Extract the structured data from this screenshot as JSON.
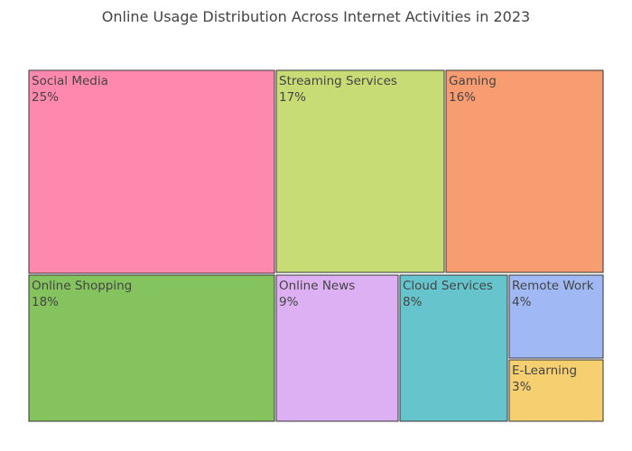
{
  "chart_data": {
    "type": "treemap",
    "title": "Online Usage Distribution Across Internet Activities in 2023",
    "tiles": [
      {
        "label": "Social Media",
        "value": 25,
        "value_label": "25%",
        "color": "#ff88ae"
      },
      {
        "label": "Streaming Services",
        "value": 17,
        "value_label": "17%",
        "color": "#c8dc76"
      },
      {
        "label": "Gaming",
        "value": 16,
        "value_label": "16%",
        "color": "#f89c72"
      },
      {
        "label": "Online Shopping",
        "value": 18,
        "value_label": "18%",
        "color": "#84c35e"
      },
      {
        "label": "Online News",
        "value": 9,
        "value_label": "9%",
        "color": "#dcb0f2"
      },
      {
        "label": "Cloud Services",
        "value": 8,
        "value_label": "8%",
        "color": "#66c5cc"
      },
      {
        "label": "Remote Work",
        "value": 4,
        "value_label": "4%",
        "color": "#a0b8f4"
      },
      {
        "label": "E-Learning",
        "value": 3,
        "value_label": "3%",
        "color": "#f6cf71"
      }
    ]
  }
}
